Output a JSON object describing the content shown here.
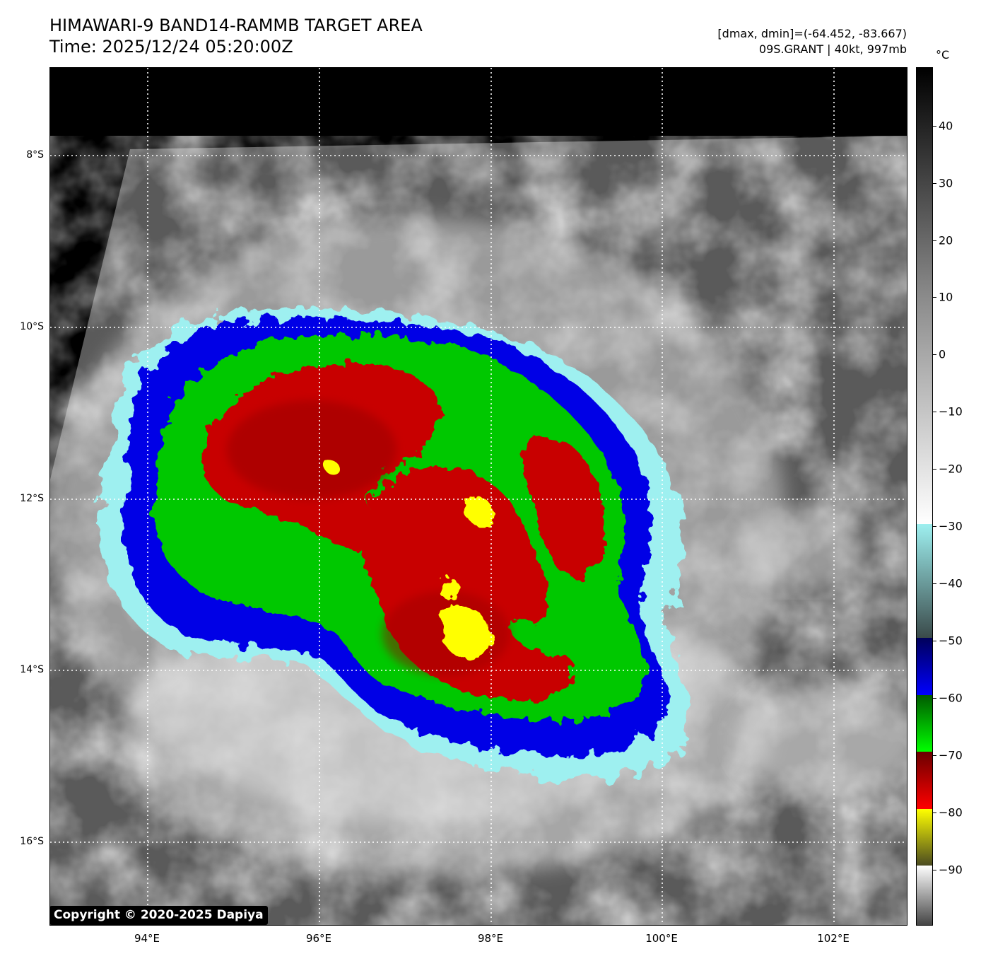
{
  "header": {
    "title_line1": "HIMAWARI-9 BAND14-RAMMB TARGET AREA",
    "title_line2": "Time: 2025/12/24 05:20:00Z",
    "range_info": "[dmax, dmin]=(-64.452, -83.667)",
    "storm_info": "09S.GRANT | 40kt, 997mb"
  },
  "map": {
    "lat_labels": [
      "8°S",
      "10°S",
      "12°S",
      "14°S",
      "16°S"
    ],
    "lon_labels": [
      "94°E",
      "96°E",
      "98°E",
      "100°E",
      "102°E"
    ]
  },
  "colorbar": {
    "unit": "°C",
    "ticks": [
      "40",
      "30",
      "20",
      "10",
      "0",
      "−10",
      "−20",
      "−30",
      "−40",
      "−50",
      "−60",
      "−70",
      "−80",
      "−90"
    ],
    "colors": {
      "warm": "#000000",
      "cold_gray": "#ffffff",
      "cyan": "#9ef0f0",
      "blue": "#0000e6",
      "green": "#00c800",
      "red": "#c80000",
      "yellow": "#ffff00",
      "olive": "#6b6b1a"
    }
  },
  "footer": {
    "copyright": "Copyright © 2020-2025 Dapiya"
  }
}
